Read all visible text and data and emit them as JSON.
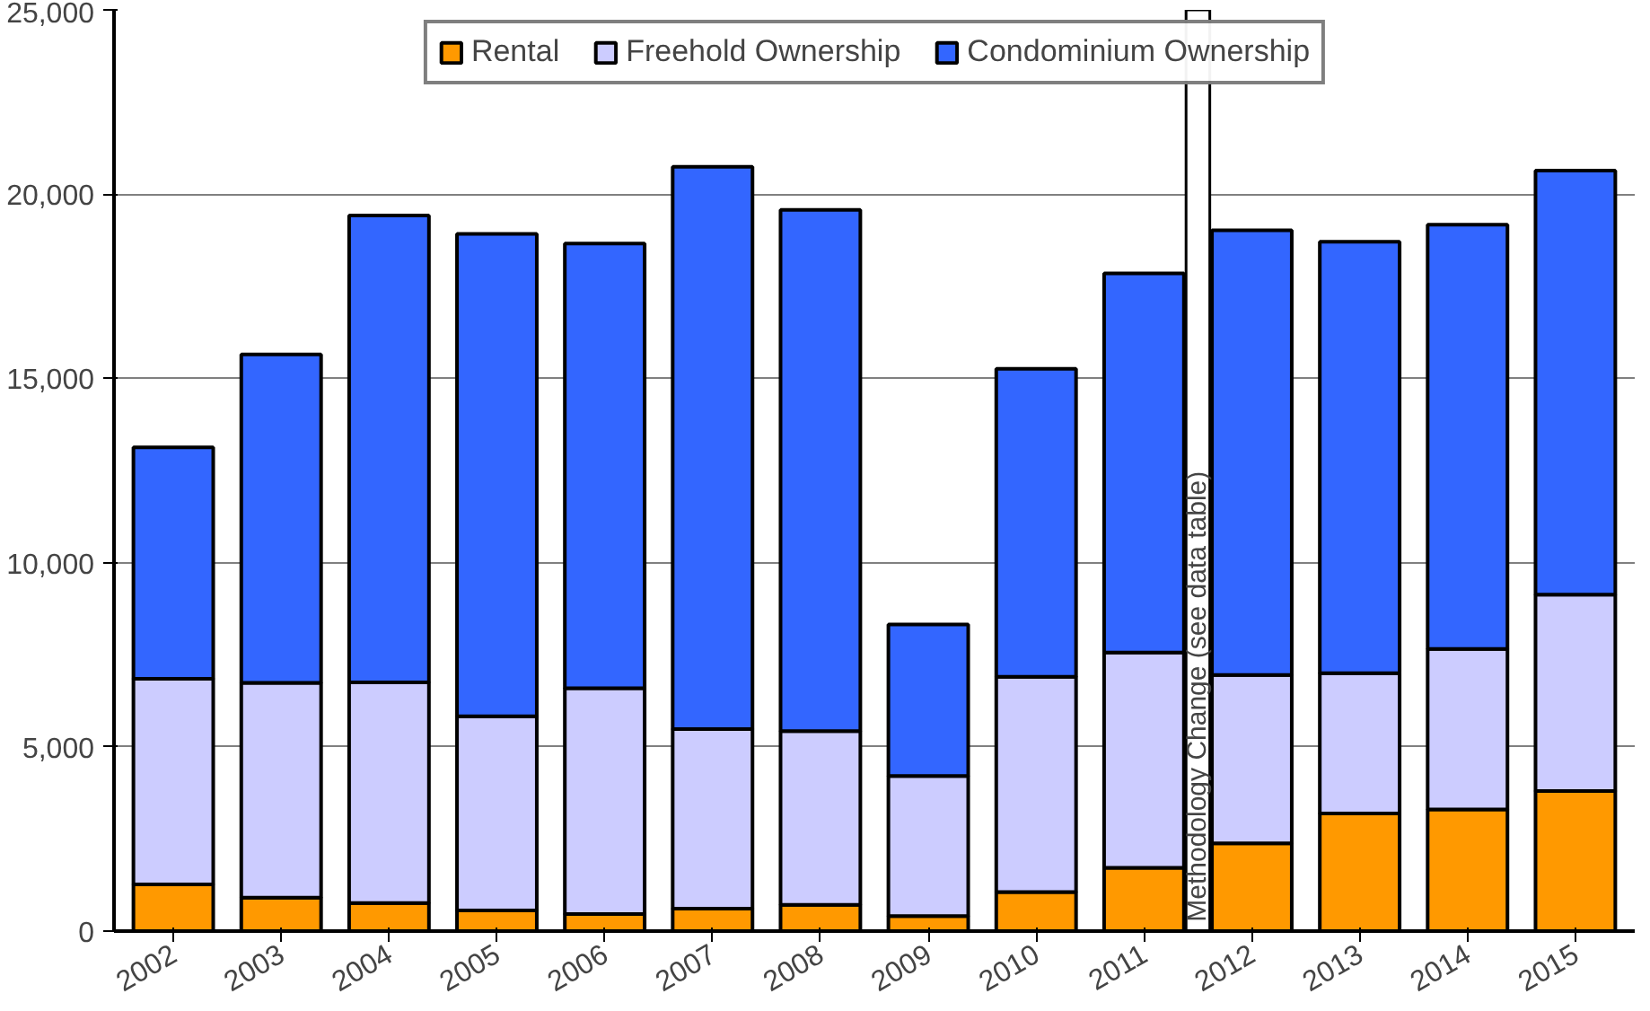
{
  "chart_data": {
    "type": "bar",
    "stacked": true,
    "categories": [
      "2002",
      "2003",
      "2004",
      "2005",
      "2006",
      "2007",
      "2008",
      "2009",
      "2010",
      "2011",
      "2012",
      "2013",
      "2014",
      "2015"
    ],
    "series": [
      {
        "name": "Rental",
        "color": "#ff9900",
        "values": [
          1270,
          910,
          760,
          560,
          460,
          610,
          710,
          410,
          1060,
          1720,
          2380,
          3190,
          3300,
          3800
        ]
      },
      {
        "name": "Freehold Ownership",
        "color": "#ccccff",
        "values": [
          5580,
          5830,
          5990,
          5270,
          6130,
          4870,
          4720,
          3800,
          5840,
          5840,
          4570,
          3810,
          4360,
          5330
        ]
      },
      {
        "name": "Condominium Ownership",
        "color": "#3366ff",
        "values": [
          6280,
          8910,
          12670,
          13090,
          12070,
          15260,
          14140,
          4110,
          8360,
          10290,
          12070,
          11710,
          11510,
          11510
        ]
      }
    ],
    "ylim": [
      0,
      25000
    ],
    "yticks": [
      {
        "value": 0,
        "label": "0"
      },
      {
        "value": 5000,
        "label": "5,000"
      },
      {
        "value": 10000,
        "label": "10,000"
      },
      {
        "value": 15000,
        "label": "15,000"
      },
      {
        "value": 20000,
        "label": "20,000"
      },
      {
        "value": 25000,
        "label": "25,000"
      }
    ],
    "grid": "y",
    "legend": "top",
    "bands": [
      {
        "axis": "x",
        "from": "2011",
        "to": "2012",
        "label": "Methodology Change  (see data table)",
        "color": "#ffffff"
      }
    ]
  }
}
